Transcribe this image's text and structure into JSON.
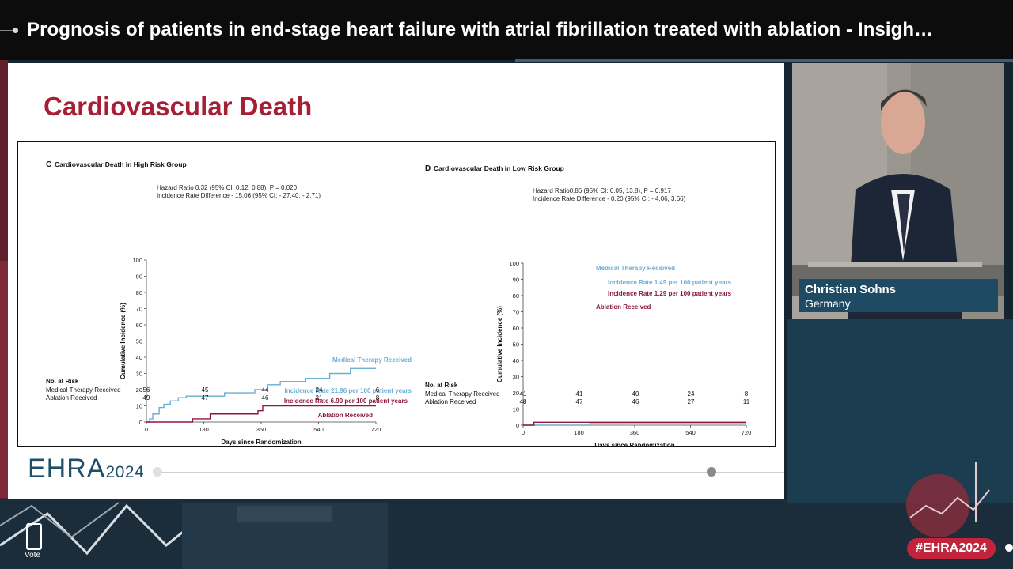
{
  "header": {
    "title": "Prognosis of patients in end-stage heart failure with atrial fibrillation treated with ablation - Insigh…"
  },
  "slide": {
    "title": "Cardiovascular Death",
    "brand": "EHRA",
    "brand_year": "2024"
  },
  "speaker": {
    "name": "Christian Sohns",
    "country": "Germany"
  },
  "footer": {
    "vote_label": "Vote",
    "hashtag": "#EHRA2024"
  },
  "colors": {
    "accent_red": "#a61f35",
    "medical_therapy": "#6baed6",
    "ablation": "#8b1a3a",
    "brand_blue": "#1f4e68",
    "hashtag_bg": "#c2253b"
  },
  "chart_data": [
    {
      "type": "line",
      "panel_letter": "C",
      "title": "Cardiovascular Death in High Risk Group",
      "xlabel": "Days since Randomization",
      "ylabel": "Cumulative Incidence (%)",
      "xlim": [
        0,
        720
      ],
      "ylim": [
        0,
        100
      ],
      "xticks": [
        0,
        180,
        360,
        540,
        720
      ],
      "yticks": [
        0,
        10,
        20,
        30,
        40,
        50,
        60,
        70,
        80,
        90,
        100
      ],
      "stats_line1": "Hazard Ratio 0.32 (95% CI: 0.12, 0.88), P = 0.020",
      "stats_line2": "Incidence Rate Difference - 15.06 (95% CI: - 27.40, - 2.71)",
      "series": [
        {
          "name": "Medical Therapy Received",
          "rate_label": "Incidence Rate 21.96 per 100 patient years",
          "x": [
            0,
            10,
            20,
            40,
            55,
            75,
            100,
            125,
            200,
            245,
            280,
            340,
            380,
            420,
            500,
            575,
            640,
            720
          ],
          "y": [
            0,
            2,
            5,
            9,
            11,
            13,
            15,
            16,
            16,
            18,
            18,
            20,
            23,
            25,
            27,
            30,
            33,
            33
          ]
        },
        {
          "name": "Ablation Received",
          "rate_label": "Incidence Rate 6.90 per 100 patient years",
          "x": [
            0,
            100,
            145,
            160,
            200,
            300,
            350,
            365,
            720
          ],
          "y": [
            0,
            0,
            2,
            2,
            5,
            5,
            7,
            10,
            10
          ]
        }
      ],
      "risk_table": {
        "header": "No. at Risk",
        "rows": [
          {
            "label": "Medical Therapy Received",
            "values": [
              "56",
              "45",
              "44",
              "24",
              "6"
            ]
          },
          {
            "label": "Ablation Received",
            "values": [
              "49",
              "47",
              "46",
              "21",
              "8"
            ]
          }
        ]
      }
    },
    {
      "type": "line",
      "panel_letter": "D",
      "title": "Cardiovascular Death in Low Risk Group",
      "xlabel": "Days since Randomization",
      "ylabel": "Cumulative Incidence (%)",
      "xlim": [
        0,
        720
      ],
      "ylim": [
        0,
        100
      ],
      "xticks": [
        0,
        180,
        360,
        540,
        720
      ],
      "yticks": [
        0,
        10,
        20,
        30,
        40,
        50,
        60,
        70,
        80,
        90,
        100
      ],
      "stats_line1": "Hazard Ratio0.86 (95% CI: 0.05, 13.8), P = 0.917",
      "stats_line2": "Incidence Rate Difference - 0.20 (95% CI: - 4.06, 3.66)",
      "series": [
        {
          "name": "Medical Therapy Received",
          "rate_label": "Incidence Rate 1.49 per 100 patient years",
          "x": [
            0,
            215,
            215,
            720
          ],
          "y": [
            0,
            0,
            1.5,
            1.5
          ]
        },
        {
          "name": "Ablation Received",
          "rate_label": "Incidence Rate 1.29 per 100 patient years",
          "x": [
            0,
            35,
            35,
            720
          ],
          "y": [
            0,
            0,
            1.8,
            1.8
          ]
        }
      ],
      "risk_table": {
        "header": "No. at Risk",
        "rows": [
          {
            "label": "Medical Therapy Received",
            "values": [
              "41",
              "41",
              "40",
              "24",
              "8"
            ]
          },
          {
            "label": "Ablation Received",
            "values": [
              "48",
              "47",
              "46",
              "27",
              "11"
            ]
          }
        ]
      }
    }
  ]
}
